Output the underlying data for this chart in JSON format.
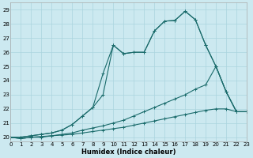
{
  "xlabel": "Humidex (Indice chaleur)",
  "bg_color": "#cce9f0",
  "grid_color": "#aad4de",
  "line_color": "#1a6b6b",
  "xlim": [
    0,
    23
  ],
  "ylim": [
    19.7,
    29.5
  ],
  "xtick_labels": [
    "0",
    "1",
    "2",
    "3",
    "4",
    "5",
    "6",
    "7",
    "8",
    "9",
    "10",
    "11",
    "12",
    "13",
    "14",
    "15",
    "16",
    "17",
    "18",
    "19",
    "20",
    "21",
    "22",
    "23"
  ],
  "ytick_vals": [
    20,
    21,
    22,
    23,
    24,
    25,
    26,
    27,
    28,
    29
  ],
  "line1": {
    "x": [
      0,
      1,
      2,
      3,
      4,
      5,
      6,
      7,
      8,
      9,
      10,
      11,
      12,
      13,
      14,
      15,
      16,
      17,
      18,
      19,
      20,
      21,
      22,
      23
    ],
    "y": [
      20,
      19.9,
      20.0,
      20.0,
      20.1,
      20.15,
      20.2,
      20.3,
      20.4,
      20.5,
      20.6,
      20.7,
      20.85,
      21.0,
      21.15,
      21.3,
      21.45,
      21.6,
      21.75,
      21.9,
      22.0,
      22.0,
      21.8,
      21.8
    ]
  },
  "line2": {
    "x": [
      0,
      1,
      2,
      3,
      4,
      5,
      6,
      7,
      8,
      9,
      10,
      11,
      12,
      13,
      14,
      15,
      16,
      17,
      18,
      19,
      20,
      21,
      22,
      23
    ],
    "y": [
      20,
      19.9,
      20.0,
      20.05,
      20.1,
      20.2,
      20.3,
      20.5,
      20.65,
      20.8,
      21.0,
      21.2,
      21.5,
      21.8,
      22.1,
      22.4,
      22.7,
      23.0,
      23.4,
      23.7,
      25.0,
      23.2,
      21.8,
      21.8
    ]
  },
  "line3": {
    "x": [
      0,
      1,
      2,
      3,
      4,
      5,
      6,
      7,
      8,
      9,
      10,
      11,
      12,
      13,
      14,
      15,
      16,
      17,
      18,
      19,
      20,
      21,
      22,
      23
    ],
    "y": [
      20,
      20.0,
      20.1,
      20.2,
      20.3,
      20.5,
      20.9,
      21.5,
      22.1,
      24.5,
      26.5,
      25.9,
      26.0,
      26.0,
      27.5,
      28.2,
      28.25,
      28.9,
      28.3,
      26.5,
      25.0,
      23.2,
      21.8,
      21.8
    ]
  },
  "line4": {
    "x": [
      0,
      1,
      2,
      3,
      4,
      5,
      6,
      7,
      8,
      9,
      10,
      11,
      12,
      13,
      14,
      15,
      16,
      17,
      18,
      19,
      20,
      21,
      22,
      23
    ],
    "y": [
      20,
      20.0,
      20.1,
      20.2,
      20.3,
      20.5,
      20.9,
      21.5,
      22.1,
      23.0,
      26.5,
      25.9,
      26.0,
      26.0,
      27.5,
      28.2,
      28.25,
      28.9,
      28.3,
      26.5,
      25.0,
      23.2,
      21.8,
      21.8
    ]
  }
}
